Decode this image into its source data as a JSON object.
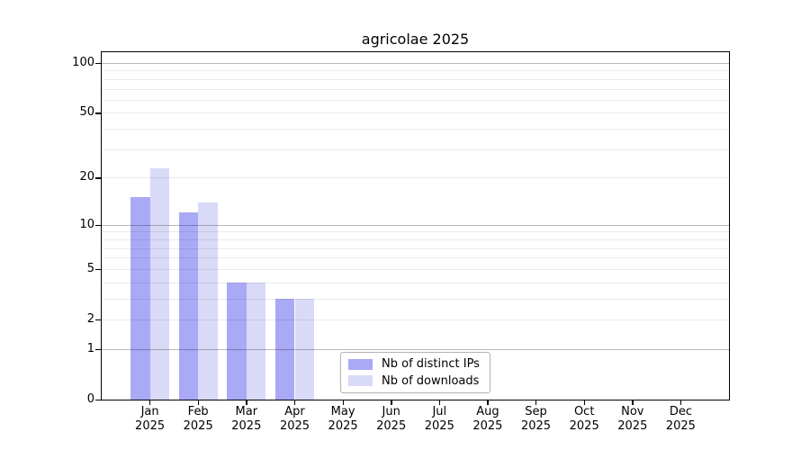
{
  "figure": {
    "title": "agricolae 2025"
  },
  "chart_data": {
    "type": "bar",
    "title": "agricolae 2025",
    "x": {
      "months": [
        "Jan",
        "Feb",
        "Mar",
        "Apr",
        "May",
        "Jun",
        "Jul",
        "Aug",
        "Sep",
        "Oct",
        "Nov",
        "Dec"
      ],
      "year": "2025"
    },
    "series": [
      {
        "name": "Nb of distinct IPs",
        "color": "#a9a9f5",
        "values": [
          15,
          12,
          4,
          3,
          0,
          0,
          0,
          0,
          0,
          0,
          0,
          0
        ]
      },
      {
        "name": "Nb of downloads",
        "color": "#d9d9f8",
        "values": [
          23,
          14,
          4,
          3,
          0,
          0,
          0,
          0,
          0,
          0,
          0,
          0
        ]
      }
    ],
    "y_axis": {
      "scale": "log10(1+x)",
      "tick_labels": [
        0,
        1,
        2,
        5,
        10,
        20,
        50,
        100
      ],
      "major_gridlines": [
        1,
        10,
        100
      ],
      "minor_gridlines": [
        2,
        3,
        4,
        5,
        6,
        7,
        8,
        9,
        20,
        30,
        40,
        50,
        60,
        70,
        80,
        90
      ],
      "range": [
        0,
        114
      ]
    },
    "legend": {
      "position": "lower center"
    },
    "grid": true
  }
}
